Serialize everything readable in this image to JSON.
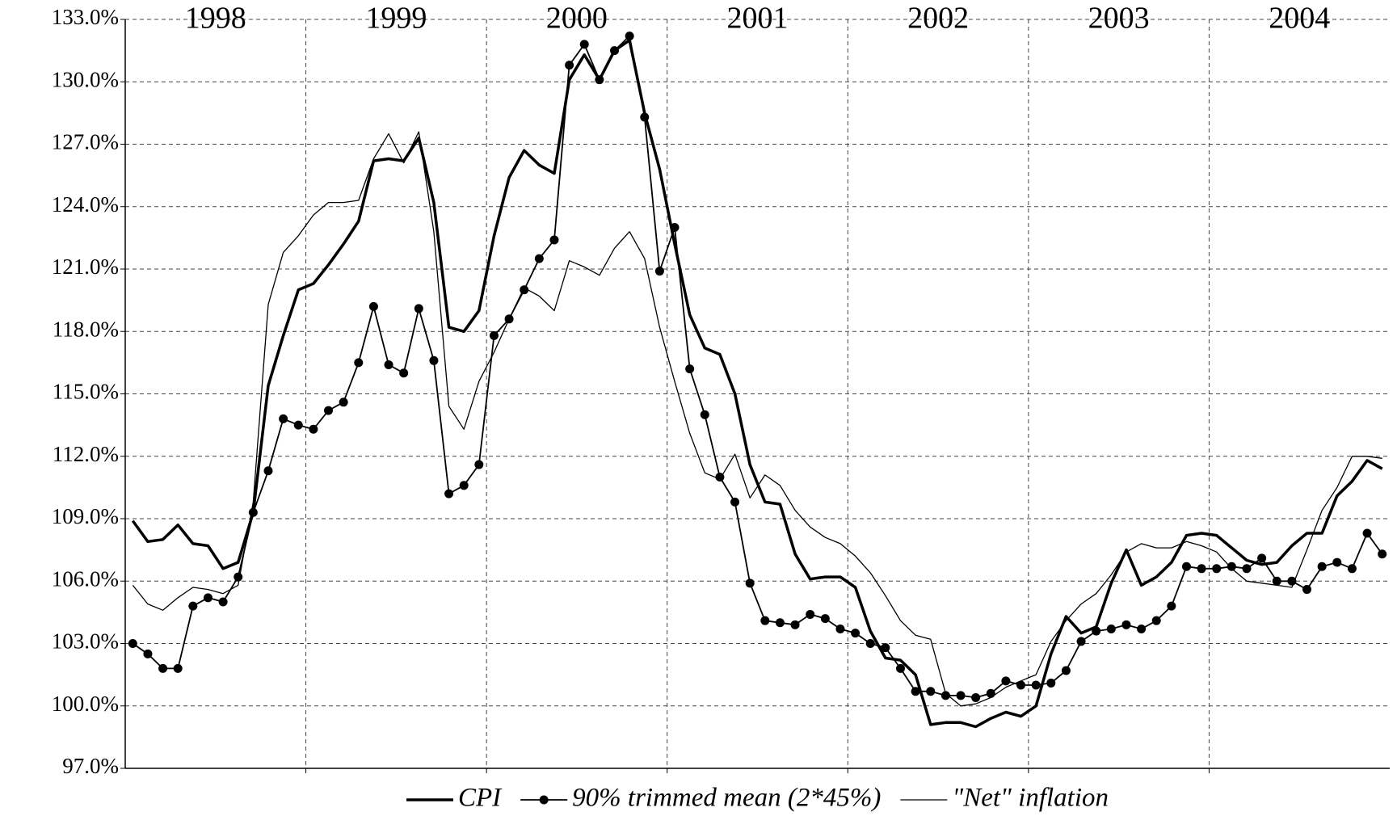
{
  "chart_data": {
    "type": "line",
    "categories": [
      null,
      null,
      null,
      null,
      null,
      null,
      "1998",
      null,
      null,
      null,
      null,
      null,
      null,
      null,
      null,
      null,
      null,
      null,
      "1999",
      null,
      null,
      null,
      null,
      null,
      null,
      null,
      null,
      null,
      null,
      null,
      "2000",
      null,
      null,
      null,
      null,
      null,
      null,
      null,
      null,
      null,
      null,
      null,
      "2001",
      null,
      null,
      null,
      null,
      null,
      null,
      null,
      null,
      null,
      null,
      null,
      "2002",
      null,
      null,
      null,
      null,
      null,
      null,
      null,
      null,
      null,
      null,
      null,
      "2003",
      null,
      null,
      null,
      null,
      null,
      null,
      null,
      null,
      null,
      null,
      null,
      "2004",
      null,
      null,
      null,
      null,
      null
    ],
    "ylim": [
      97,
      133
    ],
    "yticks": [
      {
        "value": 97,
        "label": "97.0%"
      },
      {
        "value": 100,
        "label": "100.0%"
      },
      {
        "value": 103,
        "label": "103.0%"
      },
      {
        "value": 106,
        "label": "106.0%"
      },
      {
        "value": 109,
        "label": "109.0%"
      },
      {
        "value": 112,
        "label": "112.0%"
      },
      {
        "value": 115,
        "label": "115.0%"
      },
      {
        "value": 118,
        "label": "118.0%"
      },
      {
        "value": 121,
        "label": "121.0%"
      },
      {
        "value": 124,
        "label": "124.0%"
      },
      {
        "value": 127,
        "label": "127.0%"
      },
      {
        "value": 130,
        "label": "130.0%"
      },
      {
        "value": 133,
        "label": "133.0%"
      }
    ],
    "grid": true,
    "legend": "bottom",
    "series": [
      {
        "name": "CPI",
        "color": "#000000",
        "line_width": 3.5,
        "marker": "none",
        "values": [
          108.9,
          107.9,
          108.0,
          108.7,
          107.8,
          107.7,
          106.6,
          106.9,
          109.3,
          115.4,
          117.8,
          120.0,
          120.3,
          121.2,
          122.2,
          123.3,
          126.2,
          126.3,
          126.2,
          127.3,
          124.2,
          118.2,
          118.0,
          119.0,
          122.6,
          125.4,
          126.7,
          126.0,
          125.6,
          130.1,
          131.3,
          130.1,
          131.5,
          132.0,
          128.5,
          125.8,
          122.2,
          118.8,
          117.2,
          116.9,
          115.0,
          111.6,
          109.8,
          109.7,
          107.3,
          106.1,
          106.2,
          106.2,
          105.7,
          103.6,
          102.3,
          102.2,
          101.5,
          99.1,
          99.2,
          99.2,
          99.0,
          99.4,
          99.7,
          99.5,
          100.0,
          102.5,
          104.3,
          103.5,
          103.8,
          105.9,
          107.5,
          105.8,
          106.2,
          106.9,
          108.2,
          108.3,
          108.2,
          107.6,
          107.0,
          106.8,
          106.9,
          107.7,
          108.3,
          108.3,
          110.1,
          110.8,
          111.8,
          111.4
        ]
      },
      {
        "name": "90% trimmed mean (2*45%)",
        "color": "#000000",
        "line_width": 1.8,
        "marker": "circle",
        "values": [
          103.0,
          102.5,
          101.8,
          101.8,
          104.8,
          105.2,
          105.0,
          106.2,
          109.3,
          111.3,
          113.8,
          113.5,
          113.3,
          114.2,
          114.6,
          116.5,
          119.2,
          116.4,
          116.0,
          119.1,
          116.6,
          110.2,
          110.6,
          111.6,
          117.8,
          118.6,
          120.0,
          121.5,
          122.4,
          130.8,
          131.8,
          130.1,
          131.5,
          132.2,
          128.3,
          120.9,
          123.0,
          116.2,
          114.0,
          111.0,
          109.8,
          105.9,
          104.1,
          104.0,
          103.9,
          104.4,
          104.2,
          103.7,
          103.5,
          103.0,
          102.8,
          101.8,
          100.7,
          100.7,
          100.5,
          100.5,
          100.4,
          100.6,
          101.2,
          101.0,
          101.0,
          101.1,
          101.7,
          103.1,
          103.6,
          103.7,
          103.9,
          103.7,
          104.1,
          104.8,
          106.7,
          106.6,
          106.6,
          106.7,
          106.6,
          107.1,
          106.0,
          106.0,
          105.6,
          106.7,
          106.9,
          106.6,
          108.3,
          107.3
        ]
      },
      {
        "name": "\"Net\" inflation",
        "color": "#000000",
        "line_width": 1.3,
        "marker": "none",
        "values": [
          105.8,
          104.9,
          104.6,
          105.2,
          105.7,
          105.6,
          105.4,
          105.8,
          109.8,
          119.3,
          121.8,
          122.6,
          123.6,
          124.2,
          124.2,
          124.3,
          126.3,
          127.5,
          126.1,
          127.6,
          122.8,
          114.4,
          113.3,
          115.6,
          117.0,
          118.6,
          120.1,
          119.7,
          119.0,
          121.4,
          121.1,
          120.7,
          122.0,
          122.8,
          121.5,
          118.2,
          115.6,
          113.1,
          111.2,
          110.9,
          112.1,
          110.0,
          111.1,
          110.6,
          109.4,
          108.6,
          108.1,
          107.8,
          107.2,
          106.4,
          105.3,
          104.1,
          103.4,
          103.2,
          100.6,
          100.0,
          100.1,
          100.4,
          100.9,
          101.2,
          101.5,
          103.1,
          104.1,
          104.9,
          105.4,
          106.3,
          107.4,
          107.8,
          107.6,
          107.6,
          107.9,
          107.7,
          107.4,
          106.6,
          106.0,
          105.9,
          105.8,
          105.7,
          107.5,
          109.4,
          110.5,
          112.0,
          112.0,
          111.9
        ]
      }
    ]
  }
}
